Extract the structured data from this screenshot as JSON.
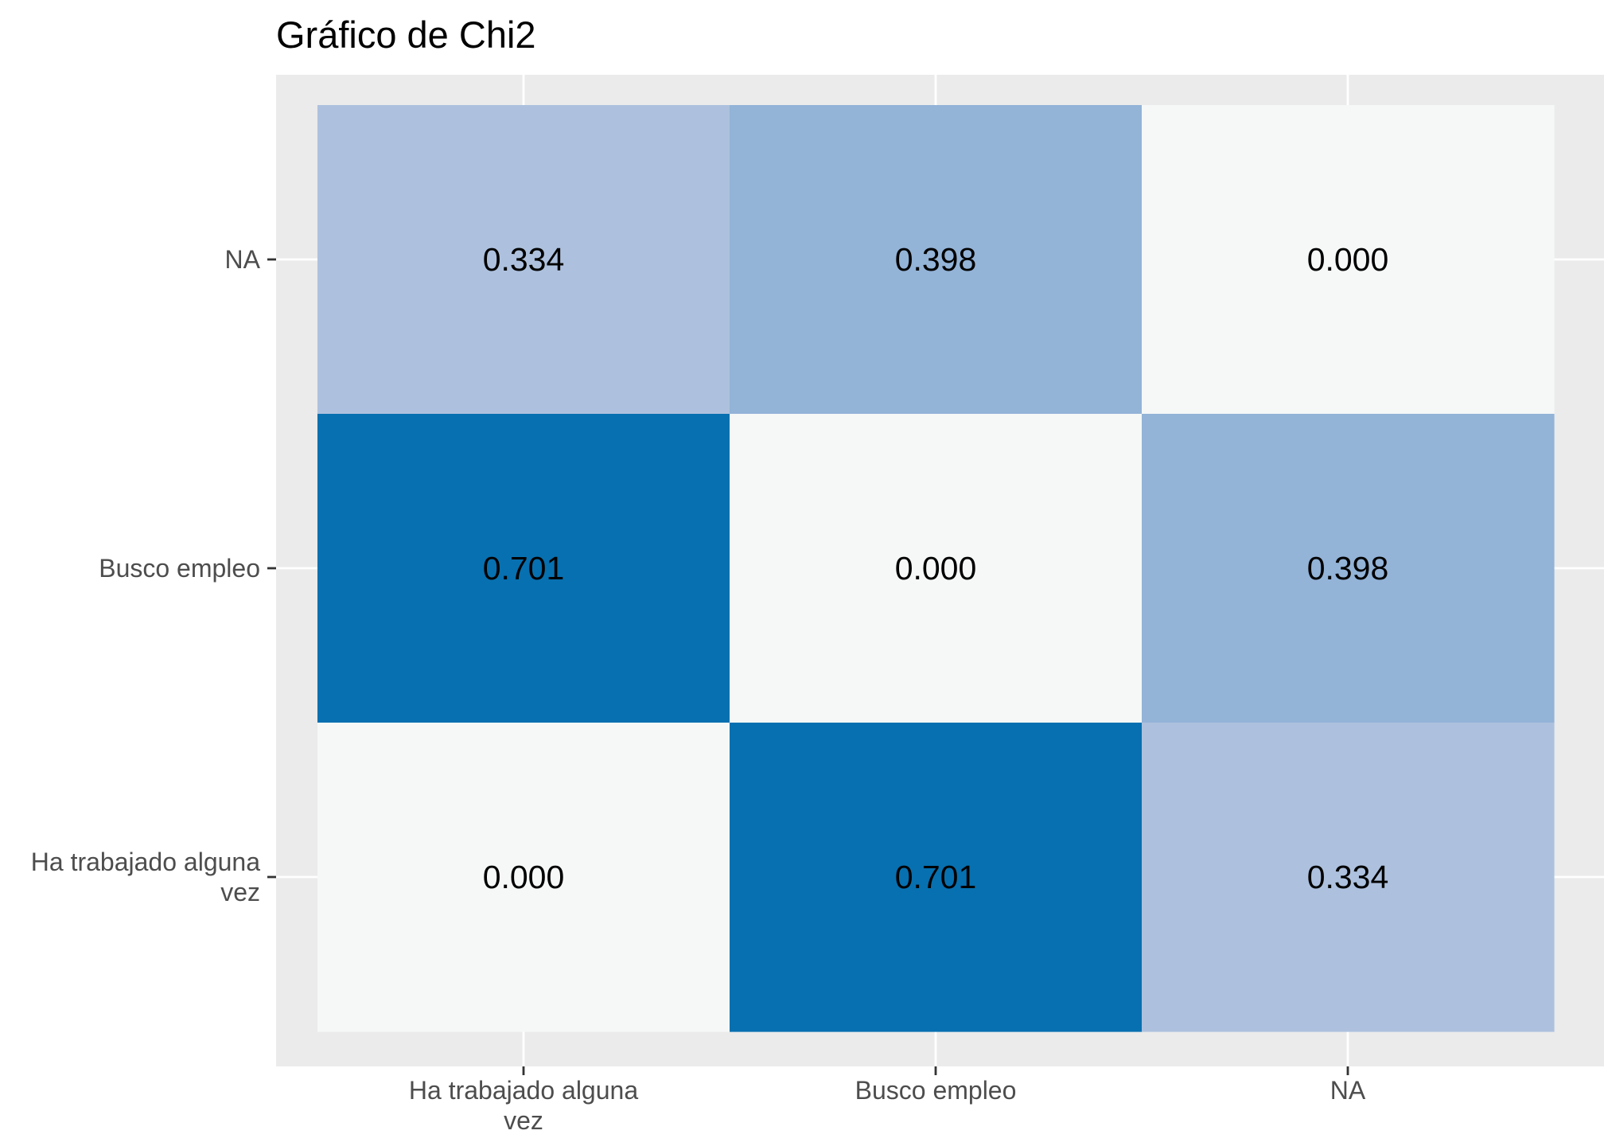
{
  "chart_data": {
    "type": "heatmap",
    "title": "Gráfico de Chi2",
    "xlabel": "",
    "ylabel": "",
    "x_categories": [
      [
        "Ha trabajado alguna",
        "vez"
      ],
      [
        "Busco empleo"
      ],
      [
        "NA"
      ]
    ],
    "y_categories": [
      [
        "NA"
      ],
      [
        "Busco empleo"
      ],
      [
        "Ha trabajado alguna",
        "vez"
      ]
    ],
    "values": [
      [
        0.334,
        0.398,
        0.0
      ],
      [
        0.701,
        0.0,
        0.398
      ],
      [
        0.0,
        0.701,
        0.334
      ]
    ],
    "value_labels": [
      [
        "0.334",
        "0.398",
        "0.000"
      ],
      [
        "0.701",
        "0.000",
        "0.398"
      ],
      [
        "0.000",
        "0.701",
        "0.334"
      ]
    ],
    "color_scale": {
      "low": "#f5f8f7",
      "mid": "#a9bedd",
      "high": "#0770b0"
    },
    "panel_background": "#ebebeb",
    "grid": true,
    "legend": "none"
  }
}
